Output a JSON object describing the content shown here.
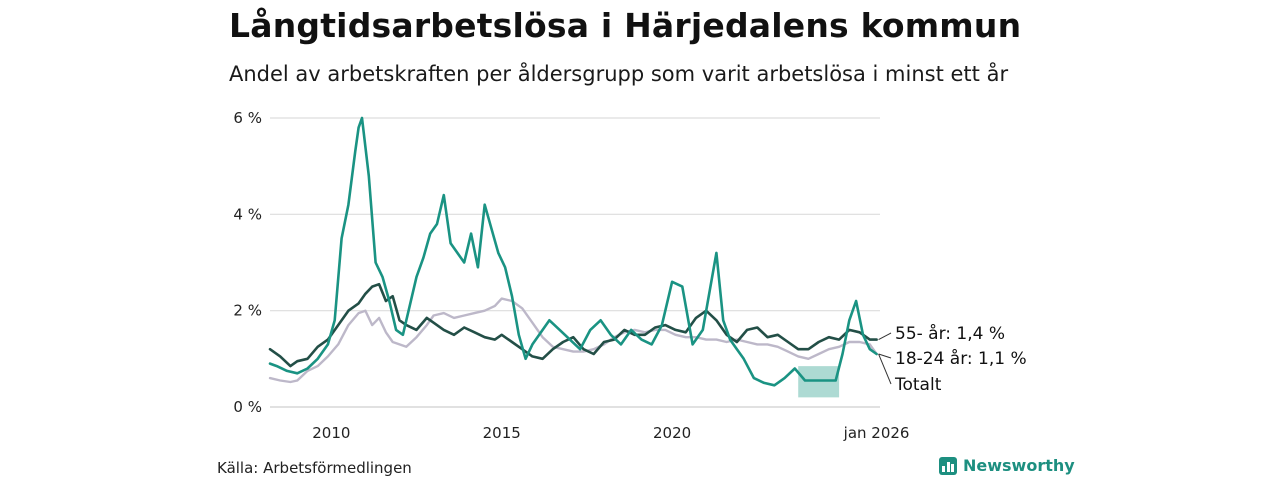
{
  "header": {
    "title": "Långtidsarbetslösa i Härjedalens kommun",
    "subtitle": "Andel av arbetskraften per åldersgrupp som varit arbetslösa i minst ett år"
  },
  "footer": {
    "source": "Källa: Arbetsförmedlingen",
    "brand": "Newsworthy"
  },
  "colors": {
    "youth": "#1a9383",
    "senior": "#234f47",
    "total": "#bdb8c9",
    "band": "#9fd4cb",
    "grid": "#dddddd",
    "brand": "#1d8f80"
  },
  "chart_data": {
    "type": "line",
    "title": "Långtidsarbetslösa i Härjedalens kommun",
    "subtitle": "Andel av arbetskraften per åldersgrupp som varit arbetslösa i minst ett år",
    "xlabel": "",
    "ylabel": "",
    "xlim": [
      2008.2,
      2026.1
    ],
    "ylim": [
      0,
      6
    ],
    "y_ticks": [
      0,
      2,
      4,
      6
    ],
    "y_tick_labels": [
      "0 %",
      "2 %",
      "4 %",
      "6 %"
    ],
    "x_ticks": [
      2010,
      2015,
      2020,
      2026.0
    ],
    "x_tick_labels": [
      "2010",
      "2015",
      "2020",
      "jan 2026"
    ],
    "grid": true,
    "series": [
      {
        "key": "total",
        "name": "Totalt",
        "end_label": "Totalt",
        "x": [
          2008.2,
          2008.5,
          2008.8,
          2009.0,
          2009.3,
          2009.6,
          2009.9,
          2010.2,
          2010.5,
          2010.8,
          2011.0,
          2011.2,
          2011.4,
          2011.6,
          2011.8,
          2012.0,
          2012.2,
          2012.5,
          2012.8,
          2013.0,
          2013.3,
          2013.6,
          2013.9,
          2014.2,
          2014.5,
          2014.8,
          2015.0,
          2015.3,
          2015.6,
          2015.9,
          2016.2,
          2016.5,
          2016.8,
          2017.1,
          2017.4,
          2017.7,
          2018.0,
          2018.3,
          2018.6,
          2018.9,
          2019.2,
          2019.5,
          2019.8,
          2020.1,
          2020.4,
          2020.7,
          2021.0,
          2021.3,
          2021.6,
          2021.9,
          2022.2,
          2022.5,
          2022.8,
          2023.1,
          2023.4,
          2023.7,
          2024.0,
          2024.3,
          2024.6,
          2024.9,
          2025.2,
          2025.5,
          2025.8,
          2026.0
        ],
        "y": [
          0.6,
          0.55,
          0.52,
          0.55,
          0.75,
          0.85,
          1.05,
          1.3,
          1.7,
          1.95,
          2.0,
          1.7,
          1.85,
          1.55,
          1.35,
          1.3,
          1.25,
          1.45,
          1.7,
          1.9,
          1.95,
          1.85,
          1.9,
          1.95,
          2.0,
          2.1,
          2.25,
          2.2,
          2.05,
          1.75,
          1.45,
          1.25,
          1.2,
          1.15,
          1.15,
          1.2,
          1.3,
          1.45,
          1.55,
          1.6,
          1.55,
          1.6,
          1.6,
          1.5,
          1.45,
          1.45,
          1.4,
          1.4,
          1.35,
          1.4,
          1.35,
          1.3,
          1.3,
          1.25,
          1.15,
          1.05,
          1.0,
          1.1,
          1.2,
          1.25,
          1.35,
          1.35,
          1.3,
          1.1
        ]
      },
      {
        "key": "senior",
        "name": "55- år",
        "end_label": "55- år: 1,4 %",
        "x": [
          2008.2,
          2008.5,
          2008.8,
          2009.0,
          2009.3,
          2009.6,
          2009.9,
          2010.2,
          2010.5,
          2010.8,
          2011.0,
          2011.2,
          2011.4,
          2011.6,
          2011.8,
          2012.0,
          2012.2,
          2012.5,
          2012.8,
          2013.0,
          2013.3,
          2013.6,
          2013.9,
          2014.2,
          2014.5,
          2014.8,
          2015.0,
          2015.3,
          2015.6,
          2015.9,
          2016.2,
          2016.5,
          2016.8,
          2017.1,
          2017.4,
          2017.7,
          2018.0,
          2018.3,
          2018.6,
          2018.9,
          2019.2,
          2019.5,
          2019.8,
          2020.1,
          2020.4,
          2020.7,
          2021.0,
          2021.3,
          2021.6,
          2021.9,
          2022.2,
          2022.5,
          2022.8,
          2023.1,
          2023.4,
          2023.7,
          2024.0,
          2024.3,
          2024.6,
          2024.9,
          2025.2,
          2025.5,
          2025.8,
          2026.0
        ],
        "y": [
          1.2,
          1.05,
          0.85,
          0.95,
          1.0,
          1.25,
          1.4,
          1.7,
          2.0,
          2.15,
          2.35,
          2.5,
          2.55,
          2.2,
          2.3,
          1.8,
          1.7,
          1.6,
          1.85,
          1.75,
          1.6,
          1.5,
          1.65,
          1.55,
          1.45,
          1.4,
          1.5,
          1.35,
          1.2,
          1.05,
          1.0,
          1.2,
          1.35,
          1.45,
          1.2,
          1.1,
          1.35,
          1.4,
          1.6,
          1.5,
          1.5,
          1.65,
          1.7,
          1.6,
          1.55,
          1.85,
          2.0,
          1.8,
          1.5,
          1.35,
          1.6,
          1.65,
          1.45,
          1.5,
          1.35,
          1.2,
          1.2,
          1.35,
          1.45,
          1.4,
          1.6,
          1.55,
          1.4,
          1.4
        ]
      },
      {
        "key": "youth",
        "name": "18-24 år",
        "end_label": "18-24 år: 1,1 %",
        "x": [
          2008.2,
          2008.4,
          2008.7,
          2009.0,
          2009.3,
          2009.6,
          2009.9,
          2010.1,
          2010.3,
          2010.5,
          2010.7,
          2010.8,
          2010.9,
          2011.1,
          2011.3,
          2011.5,
          2011.7,
          2011.9,
          2012.1,
          2012.3,
          2012.5,
          2012.7,
          2012.9,
          2013.1,
          2013.3,
          2013.5,
          2013.7,
          2013.9,
          2014.1,
          2014.3,
          2014.5,
          2014.7,
          2014.9,
          2015.1,
          2015.3,
          2015.5,
          2015.7,
          2015.9,
          2016.1,
          2016.4,
          2016.7,
          2017.0,
          2017.3,
          2017.6,
          2017.9,
          2018.2,
          2018.5,
          2018.8,
          2019.1,
          2019.4,
          2019.7,
          2020.0,
          2020.3,
          2020.6,
          2020.9,
          2021.1,
          2021.3,
          2021.5,
          2021.7,
          2021.9,
          2022.1,
          2022.4,
          2022.7,
          2023.0,
          2023.3,
          2023.6,
          2023.9,
          2024.2,
          2024.5,
          2024.8,
          2025.0,
          2025.2,
          2025.4,
          2025.6,
          2025.8,
          2026.0
        ],
        "y": [
          0.9,
          0.85,
          0.75,
          0.7,
          0.8,
          1.0,
          1.3,
          1.8,
          3.5,
          4.2,
          5.3,
          5.8,
          6.0,
          4.8,
          3.0,
          2.7,
          2.2,
          1.6,
          1.5,
          2.1,
          2.7,
          3.1,
          3.6,
          3.8,
          4.4,
          3.4,
          3.2,
          3.0,
          3.6,
          2.9,
          4.2,
          3.7,
          3.2,
          2.9,
          2.3,
          1.5,
          1.0,
          1.3,
          1.5,
          1.8,
          1.6,
          1.4,
          1.2,
          1.6,
          1.8,
          1.5,
          1.3,
          1.6,
          1.4,
          1.3,
          1.7,
          2.6,
          2.5,
          1.3,
          1.6,
          2.4,
          3.2,
          1.8,
          1.4,
          1.2,
          1.0,
          0.6,
          0.5,
          0.45,
          0.6,
          0.8,
          0.55,
          0.55,
          0.55,
          0.55,
          1.1,
          1.8,
          2.2,
          1.5,
          1.2,
          1.1
        ]
      }
    ],
    "band": {
      "series": "youth",
      "x": [
        2023.7,
        2024.9
      ],
      "y_low": [
        0.2,
        0.2
      ],
      "y_high": [
        0.85,
        0.85
      ]
    }
  }
}
